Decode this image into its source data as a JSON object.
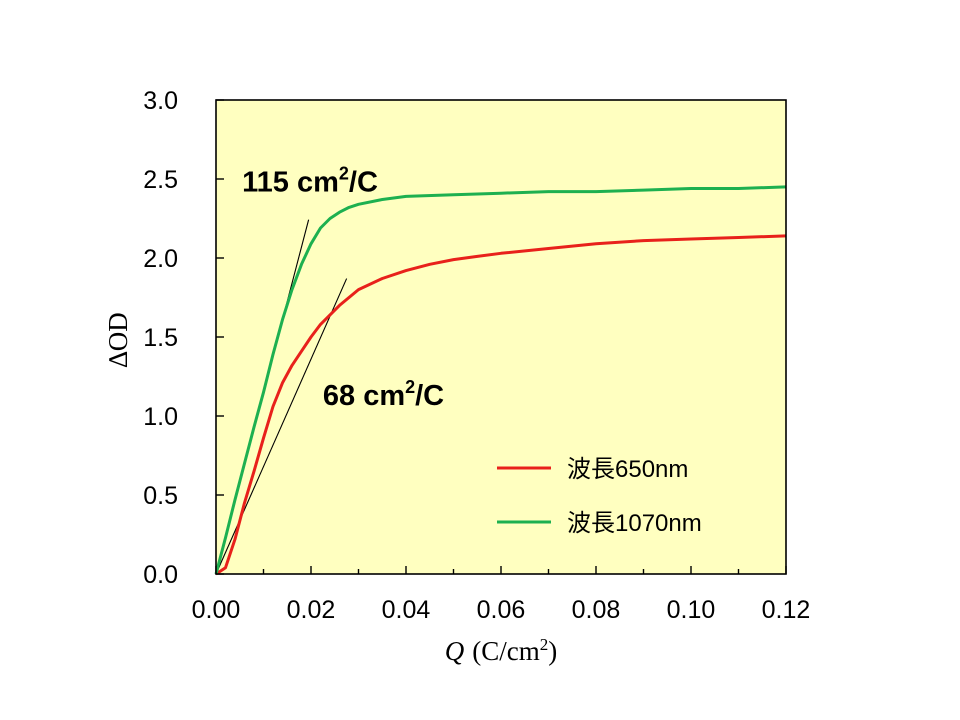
{
  "chart_data": {
    "type": "line",
    "xlabel": {
      "var": "Q",
      "unit": "(C/cm",
      "sup": "2",
      "close": ")"
    },
    "ylabel": {
      "prefix": "∆",
      "text": "OD"
    },
    "xlim": [
      0,
      0.12
    ],
    "ylim": [
      0,
      3.0
    ],
    "xticks": [
      "0.00",
      "0.02",
      "0.04",
      "0.06",
      "0.08",
      "0.10",
      "0.12"
    ],
    "yticks": [
      "0.0",
      "0.5",
      "1.0",
      "1.5",
      "2.0",
      "2.5",
      "3.0"
    ],
    "background": "#ffffc0",
    "legend_position": "bottom-right",
    "series": [
      {
        "name": "波長650nm",
        "color": "#e8211b",
        "x": [
          0,
          0.002,
          0.004,
          0.006,
          0.008,
          0.01,
          0.012,
          0.014,
          0.016,
          0.018,
          0.02,
          0.022,
          0.024,
          0.026,
          0.028,
          0.03,
          0.035,
          0.04,
          0.045,
          0.05,
          0.055,
          0.06,
          0.07,
          0.08,
          0.09,
          0.1,
          0.11,
          0.12
        ],
        "y": [
          0,
          0.04,
          0.22,
          0.45,
          0.65,
          0.86,
          1.06,
          1.21,
          1.32,
          1.41,
          1.5,
          1.58,
          1.64,
          1.7,
          1.75,
          1.8,
          1.87,
          1.92,
          1.96,
          1.99,
          2.01,
          2.03,
          2.06,
          2.09,
          2.11,
          2.12,
          2.13,
          2.14
        ]
      },
      {
        "name": "波長1070nm",
        "color": "#1db050",
        "x": [
          0,
          0.002,
          0.004,
          0.006,
          0.008,
          0.01,
          0.012,
          0.014,
          0.016,
          0.018,
          0.02,
          0.022,
          0.024,
          0.026,
          0.028,
          0.03,
          0.035,
          0.04,
          0.05,
          0.06,
          0.07,
          0.08,
          0.09,
          0.1,
          0.11,
          0.12
        ],
        "y": [
          0,
          0.23,
          0.47,
          0.7,
          0.93,
          1.15,
          1.39,
          1.61,
          1.8,
          1.96,
          2.09,
          2.19,
          2.25,
          2.29,
          2.32,
          2.34,
          2.37,
          2.39,
          2.4,
          2.41,
          2.42,
          2.42,
          2.43,
          2.44,
          2.44,
          2.45
        ]
      }
    ],
    "tangents": [
      {
        "slope": 115,
        "x": [
          0,
          0.0195
        ]
      },
      {
        "slope": 68,
        "x": [
          0,
          0.0275
        ]
      }
    ],
    "annotations": [
      {
        "text": "115 cm",
        "sup": "2",
        "suffix": "/C",
        "x": 0.0055,
        "y": 2.42
      },
      {
        "text": "68 cm",
        "sup": "2",
        "suffix": "/C",
        "x": 0.0225,
        "y": 1.07
      }
    ]
  }
}
